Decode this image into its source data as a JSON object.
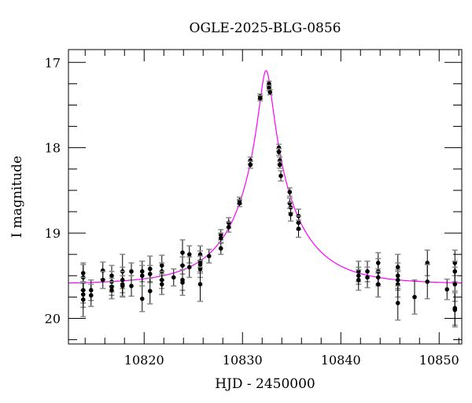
{
  "chart_data": {
    "type": "scatter",
    "title": "OGLE-2025-BLG-0856",
    "xlabel": "HJD - 2450000",
    "ylabel": "I magnitude",
    "xlim": [
      10812.3,
      10852.3
    ],
    "ylim": [
      16.85,
      20.3
    ],
    "y_inverted": true,
    "grid": false,
    "x_ticks": [
      10820,
      10830,
      10840,
      10850
    ],
    "x_tick_labels": [
      "10820",
      "10830",
      "10840",
      "10850"
    ],
    "y_ticks": [
      17,
      18,
      19,
      20
    ],
    "y_tick_labels": [
      "17",
      "18",
      "19",
      "20"
    ],
    "colors": {
      "points": "#000000",
      "model": "#ff00ff",
      "caps": "#888888"
    },
    "model": {
      "type": "point-lens microlensing fit",
      "t0": 10832.4,
      "u0": 0.1,
      "tE": 6.2,
      "baseline_mag": 19.6
    },
    "points": [
      [
        10813.8,
        19.47,
        0.12
      ],
      [
        10813.8,
        19.52,
        0.15
      ],
      [
        10813.8,
        19.67,
        0.15
      ],
      [
        10813.8,
        19.72,
        0.15
      ],
      [
        10813.8,
        19.78,
        0.2
      ],
      [
        10814.6,
        19.67,
        0.12
      ],
      [
        10814.6,
        19.73,
        0.13
      ],
      [
        10815.8,
        19.44,
        0.1
      ],
      [
        10815.8,
        19.55,
        0.1
      ],
      [
        10816.7,
        19.5,
        0.12
      ],
      [
        10816.7,
        19.57,
        0.12
      ],
      [
        10816.7,
        19.63,
        0.1
      ],
      [
        10816.7,
        19.67,
        0.1
      ],
      [
        10817.8,
        19.45,
        0.2
      ],
      [
        10817.8,
        19.55,
        0.15
      ],
      [
        10817.8,
        19.6,
        0.15
      ],
      [
        10817.8,
        19.62,
        0.12
      ],
      [
        10818.7,
        19.45,
        0.1
      ],
      [
        10818.7,
        19.62,
        0.12
      ],
      [
        10819.8,
        19.45,
        0.12
      ],
      [
        10819.8,
        19.5,
        0.12
      ],
      [
        10819.8,
        19.77,
        0.15
      ],
      [
        10820.6,
        19.42,
        0.15
      ],
      [
        10820.6,
        19.48,
        0.1
      ],
      [
        10820.6,
        19.68,
        0.15
      ],
      [
        10821.8,
        19.38,
        0.12
      ],
      [
        10821.8,
        19.45,
        0.1
      ],
      [
        10821.8,
        19.55,
        0.1
      ],
      [
        10821.8,
        19.6,
        0.12
      ],
      [
        10823.0,
        19.52,
        0.1
      ],
      [
        10823.9,
        19.23,
        0.15
      ],
      [
        10823.9,
        19.38,
        0.1
      ],
      [
        10823.9,
        19.55,
        0.12
      ],
      [
        10823.9,
        19.58,
        0.15
      ],
      [
        10824.6,
        19.25,
        0.1
      ],
      [
        10824.6,
        19.4,
        0.12
      ],
      [
        10825.7,
        19.25,
        0.1
      ],
      [
        10825.7,
        19.33,
        0.12
      ],
      [
        10825.7,
        19.37,
        0.1
      ],
      [
        10825.7,
        19.42,
        0.1
      ],
      [
        10825.7,
        19.6,
        0.2
      ],
      [
        10826.6,
        19.27,
        0.08
      ],
      [
        10827.8,
        19.02,
        0.06
      ],
      [
        10827.8,
        19.06,
        0.06
      ],
      [
        10827.8,
        19.18,
        0.07
      ],
      [
        10828.6,
        18.88,
        0.06
      ],
      [
        10828.6,
        18.93,
        0.06
      ],
      [
        10829.7,
        18.62,
        0.04
      ],
      [
        10829.7,
        18.65,
        0.04
      ],
      [
        10830.8,
        18.15,
        0.04
      ],
      [
        10830.8,
        18.2,
        0.04
      ],
      [
        10831.8,
        17.4,
        0.03
      ],
      [
        10831.8,
        17.42,
        0.03
      ],
      [
        10832.7,
        17.25,
        0.03
      ],
      [
        10832.7,
        17.3,
        0.03
      ],
      [
        10832.8,
        17.35,
        0.03
      ],
      [
        10833.7,
        18.0,
        0.04
      ],
      [
        10833.7,
        18.05,
        0.04
      ],
      [
        10833.8,
        18.15,
        0.04
      ],
      [
        10833.8,
        18.2,
        0.04
      ],
      [
        10833.9,
        18.33,
        0.06
      ],
      [
        10834.8,
        18.52,
        0.05
      ],
      [
        10834.8,
        18.65,
        0.06
      ],
      [
        10834.9,
        18.7,
        0.06
      ],
      [
        10834.9,
        18.78,
        0.08
      ],
      [
        10835.7,
        18.8,
        0.08
      ],
      [
        10835.7,
        18.88,
        0.08
      ],
      [
        10835.7,
        18.95,
        0.1
      ],
      [
        10841.8,
        19.45,
        0.12
      ],
      [
        10841.8,
        19.5,
        0.1
      ],
      [
        10841.8,
        19.55,
        0.12
      ],
      [
        10842.7,
        19.45,
        0.12
      ],
      [
        10842.7,
        19.52,
        0.12
      ],
      [
        10843.8,
        19.35,
        0.12
      ],
      [
        10843.8,
        19.45,
        0.15
      ],
      [
        10843.8,
        19.52,
        0.1
      ],
      [
        10843.8,
        19.6,
        0.15
      ],
      [
        10845.8,
        19.4,
        0.15
      ],
      [
        10845.8,
        19.5,
        0.15
      ],
      [
        10845.8,
        19.55,
        0.12
      ],
      [
        10845.8,
        19.6,
        0.15
      ],
      [
        10845.8,
        19.82,
        0.2
      ],
      [
        10847.5,
        19.75,
        0.2
      ],
      [
        10848.8,
        19.35,
        0.15
      ],
      [
        10848.8,
        19.57,
        0.2
      ],
      [
        10850.8,
        19.66,
        0.12
      ],
      [
        10851.6,
        19.35,
        0.15
      ],
      [
        10851.6,
        19.45,
        0.12
      ],
      [
        10851.6,
        19.6,
        0.2
      ],
      [
        10851.6,
        19.88,
        0.2
      ],
      [
        10851.6,
        19.9,
        0.2
      ]
    ]
  }
}
